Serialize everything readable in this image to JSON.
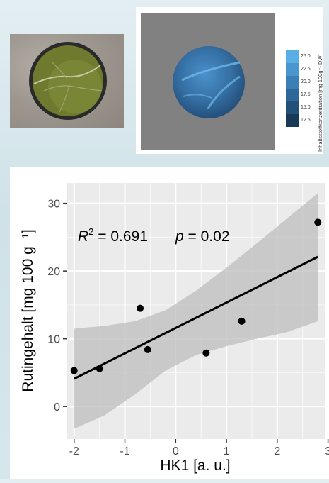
{
  "colorbar": {
    "label": "Inhaltsstoffkonzentration [mg 100g⁻¹ DW]",
    "ticks": [
      "25.0",
      "22.5",
      "20.0",
      "17.5",
      "15.0",
      "12.5"
    ],
    "colors": [
      "#5aaee6",
      "#4a97d0",
      "#3b7fb6",
      "#2d6799",
      "#225077",
      "#193a57"
    ]
  },
  "chart_data": {
    "type": "scatter",
    "xlabel": "HK1 [a. u.]",
    "ylabel": "Rutingehalt [mg 100 g⁻¹]",
    "xlim": [
      -2.15,
      2.95
    ],
    "ylim": [
      -4.8,
      33
    ],
    "xticks": [
      "-2",
      "-1",
      "0",
      "1",
      "2",
      "3"
    ],
    "yticks": [
      "0",
      "10",
      "20",
      "30"
    ],
    "grid": true,
    "points": [
      {
        "x": -2.0,
        "y": 5.3
      },
      {
        "x": -1.5,
        "y": 5.6
      },
      {
        "x": -0.7,
        "y": 14.5
      },
      {
        "x": -0.55,
        "y": 8.4
      },
      {
        "x": 0.6,
        "y": 7.9
      },
      {
        "x": 1.3,
        "y": 12.6
      },
      {
        "x": 2.8,
        "y": 27.2
      }
    ],
    "fit": {
      "x": [
        -2.0,
        2.8
      ],
      "y": [
        4.1,
        22.1
      ],
      "ci_lower": [
        -3.3,
        -1.3,
        1.8,
        5.3,
        7.6,
        8.9,
        10.0,
        11.0,
        12.6
      ],
      "ci_upper": [
        11.5,
        11.9,
        12.6,
        14.2,
        17.1,
        20.5,
        24.1,
        27.8,
        31.5
      ],
      "ci_x": [
        -2.0,
        -1.4,
        -0.8,
        -0.2,
        0.4,
        1.0,
        1.6,
        2.2,
        2.8
      ]
    },
    "annotation": {
      "r2_symbol": "R",
      "r2_sup": "2",
      "r2_value": " = 0.691",
      "p_symbol": "p",
      "p_value": " = 0.02"
    }
  }
}
